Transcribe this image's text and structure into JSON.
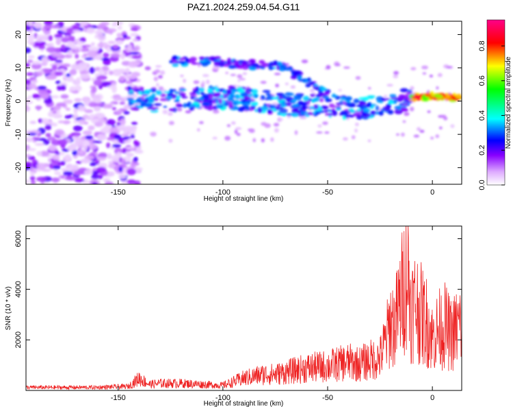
{
  "chart_data": [
    {
      "type": "heatmap",
      "title": "PAZ1.2024.259.04.54.G11",
      "xlabel": "Height of straight line (km)",
      "ylabel": "Frequency (Hz)",
      "xlim": [
        -194,
        14
      ],
      "ylim": [
        -25,
        24
      ],
      "xticks": [
        -150,
        -100,
        -50,
        0
      ],
      "yticks": [
        -20,
        -10,
        0,
        10,
        20
      ],
      "colorbar": {
        "label": "Normalized spectral amplitude",
        "range": [
          0.0,
          0.95
        ],
        "ticks": [
          0.0,
          0.2,
          0.4,
          0.6,
          0.8
        ],
        "colormap": [
          "#ffffff",
          "#8800ff",
          "#0000ff",
          "#00ffff",
          "#00ff00",
          "#ffff00",
          "#ff0000",
          "#ff0080"
        ]
      },
      "features": [
        {
          "name": "main-track",
          "points": [
            [
              -145,
              1
            ],
            [
              -130,
              0
            ],
            [
              -110,
              1
            ],
            [
              -95,
              1
            ],
            [
              -80,
              0
            ],
            [
              -70,
              -1
            ],
            [
              -50,
              -1
            ],
            [
              -40,
              -2
            ],
            [
              -20,
              -1
            ],
            [
              -10,
              1
            ],
            [
              0,
              1.5
            ],
            [
              12,
              1
            ]
          ]
        },
        {
          "name": "upper-branch",
          "points": [
            [
              -125,
              12
            ],
            [
              -105,
              12
            ],
            [
              -90,
              11
            ],
            [
              -75,
              11
            ],
            [
              -68,
              9
            ],
            [
              -58,
              5
            ],
            [
              -50,
              2
            ]
          ]
        }
      ],
      "legend": "none"
    },
    {
      "type": "line",
      "title": "",
      "xlabel": "Height of straight line (km)",
      "ylabel": "SNR (10 * v/v)",
      "xlim": [
        -194,
        14
      ],
      "ylim": [
        0,
        6500
      ],
      "xticks": [
        -150,
        -100,
        -50,
        0
      ],
      "yticks": [
        2000,
        4000,
        6000
      ],
      "series": [
        {
          "color": "#ee2222",
          "x": [
            -194,
            -180,
            -160,
            -145,
            -140,
            -135,
            -130,
            -120,
            -110,
            -100,
            -90,
            -85,
            -80,
            -75,
            -70,
            -65,
            -60,
            -55,
            -50,
            -45,
            -40,
            -35,
            -30,
            -25,
            -22,
            -20,
            -18,
            -15,
            -12,
            -10,
            -8,
            -5,
            -2,
            0,
            3,
            6,
            9,
            12,
            14
          ],
          "y": [
            150,
            150,
            150,
            200,
            600,
            300,
            350,
            350,
            300,
            250,
            600,
            700,
            800,
            800,
            900,
            1000,
            1100,
            1150,
            1200,
            1300,
            1400,
            1300,
            1500,
            1600,
            2500,
            3400,
            3200,
            4500,
            6000,
            4000,
            4300,
            3700,
            3300,
            2600,
            3000,
            3200,
            2700,
            3100,
            3300
          ]
        }
      ],
      "legend": "none"
    }
  ]
}
